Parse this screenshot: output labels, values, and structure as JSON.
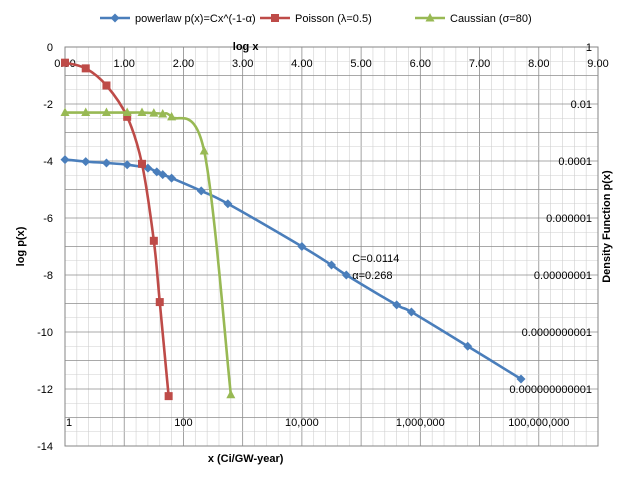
{
  "chart_data": {
    "type": "line",
    "xlabel": "x (Ci/GW-year)",
    "ylabel": "log p(x)",
    "top_xlabel": "log x",
    "right_ylabel": "Density Function p(x)",
    "xlim": [
      0,
      9
    ],
    "ylim": [
      -14,
      0
    ],
    "grid": true,
    "legend_position": "top",
    "x_ticks_top": [
      "0.00",
      "1.00",
      "2.00",
      "3.00",
      "4.00",
      "5.00",
      "6.00",
      "7.00",
      "8.00",
      "9.00"
    ],
    "x_ticks_bottom": [
      {
        "label": "1",
        "log_x": 0
      },
      {
        "label": "100",
        "log_x": 2
      },
      {
        "label": "10,000",
        "log_x": 4
      },
      {
        "label": "1,000,000",
        "log_x": 6
      },
      {
        "label": "100,000,000",
        "log_x": 8
      }
    ],
    "y_ticks_left": [
      "0",
      "-2",
      "-4",
      "-6",
      "-8",
      "-10",
      "-12",
      "-14"
    ],
    "y_ticks_right": [
      {
        "label": "1",
        "log_y": 0
      },
      {
        "label": "0.01",
        "log_y": -2
      },
      {
        "label": "0.0001",
        "log_y": -4
      },
      {
        "label": "0.000001",
        "log_y": -6
      },
      {
        "label": "0.00000001",
        "log_y": -8
      },
      {
        "label": "0.0000000001",
        "log_y": -10
      },
      {
        "label": "0.000000000001",
        "log_y": -12
      }
    ],
    "annotations": [
      "C=0.0114",
      "α=0.268"
    ],
    "series": [
      {
        "name": "powerlaw p(x)=Cx^(-1-α)",
        "color": "#4a7ebb",
        "marker": "diamond",
        "points": [
          [
            0.0,
            -3.95
          ],
          [
            0.35,
            -4.02
          ],
          [
            0.7,
            -4.07
          ],
          [
            1.05,
            -4.13
          ],
          [
            1.4,
            -4.25
          ],
          [
            1.55,
            -4.38
          ],
          [
            1.65,
            -4.48
          ],
          [
            1.8,
            -4.6
          ],
          [
            2.3,
            -5.05
          ],
          [
            2.75,
            -5.5
          ],
          [
            4.0,
            -7.0
          ],
          [
            4.5,
            -7.65
          ],
          [
            4.75,
            -8.0
          ],
          [
            5.6,
            -9.05
          ],
          [
            5.85,
            -9.3
          ],
          [
            6.8,
            -10.5
          ],
          [
            7.7,
            -11.65
          ]
        ]
      },
      {
        "name": "Poisson (λ=0.5)",
        "color": "#be4b48",
        "marker": "square",
        "points": [
          [
            0.0,
            -0.55
          ],
          [
            0.35,
            -0.75
          ],
          [
            0.7,
            -1.35
          ],
          [
            1.05,
            -2.45
          ],
          [
            1.3,
            -4.1
          ],
          [
            1.5,
            -6.8
          ],
          [
            1.6,
            -8.95
          ],
          [
            1.75,
            -12.25
          ]
        ]
      },
      {
        "name": "Caussian (σ=80)",
        "color": "#98b954",
        "marker": "triangle",
        "points": [
          [
            0.0,
            -2.3
          ],
          [
            0.35,
            -2.3
          ],
          [
            0.7,
            -2.3
          ],
          [
            1.05,
            -2.3
          ],
          [
            1.3,
            -2.3
          ],
          [
            1.5,
            -2.32
          ],
          [
            1.65,
            -2.35
          ],
          [
            1.8,
            -2.45
          ],
          [
            2.35,
            -3.65
          ],
          [
            2.8,
            -12.2
          ]
        ]
      }
    ]
  }
}
